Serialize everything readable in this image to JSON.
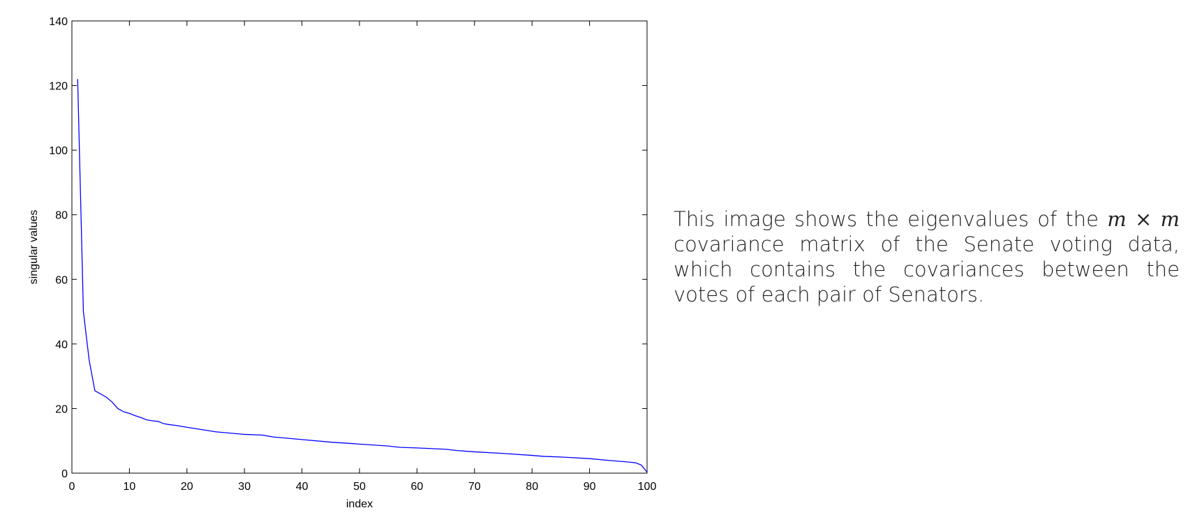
{
  "chart_data": {
    "type": "line",
    "xlabel": "index",
    "ylabel": "singular values",
    "xlim": [
      0,
      100
    ],
    "ylim": [
      0,
      140
    ],
    "xticks": [
      0,
      10,
      20,
      30,
      40,
      50,
      60,
      70,
      80,
      90,
      100
    ],
    "yticks": [
      0,
      20,
      40,
      60,
      80,
      100,
      120,
      140
    ],
    "grid": false,
    "line_color": "#0000ff",
    "series": [
      {
        "x": [
          1,
          2,
          3,
          4,
          5,
          6,
          7,
          8,
          9,
          10,
          11,
          12,
          13,
          14,
          15,
          16,
          17,
          18,
          19,
          20,
          25,
          30,
          33,
          35,
          40,
          45,
          50,
          55,
          57,
          60,
          65,
          67,
          70,
          75,
          80,
          82,
          85,
          90,
          93,
          95,
          97,
          98,
          99,
          100
        ],
        "y": [
          122,
          50,
          35,
          25.5,
          24.5,
          23.5,
          22,
          20,
          19,
          18.5,
          17.8,
          17.2,
          16.5,
          16.2,
          16,
          15.3,
          15,
          14.8,
          14.5,
          14.2,
          12.8,
          12.0,
          11.8,
          11.2,
          10.4,
          9.6,
          9.0,
          8.4,
          8.0,
          7.8,
          7.4,
          7.0,
          6.6,
          6.1,
          5.5,
          5.2,
          5.0,
          4.5,
          4.0,
          3.7,
          3.4,
          3.2,
          2.5,
          0.3
        ]
      }
    ]
  },
  "caption": {
    "before_math": "This image shows the eigenvalues of the ",
    "math": "m × m",
    "after_math": " covariance matrix of the Senate voting data, which contains the covariances between the votes of each pair of Senators."
  }
}
